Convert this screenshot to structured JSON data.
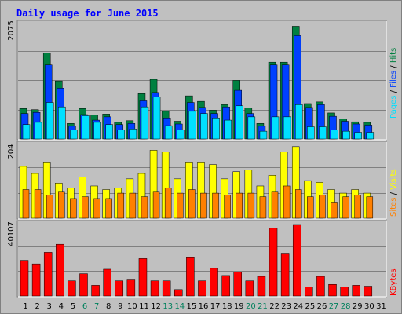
{
  "title": "Daily usage for June 2015",
  "colors": {
    "hits": "#008040",
    "files": "#0040ff",
    "pages": "#00e0ff",
    "visits": "#ffff00",
    "sites": "#ff8000",
    "kbytes": "#ff0000",
    "weekend_label": "#00805c",
    "weekday_label": "#000000"
  },
  "chart_data": [
    {
      "type": "bar",
      "panel": "top",
      "ymax_label": "2075",
      "ylim": [
        0,
        2075
      ],
      "legend": [
        "Pages",
        "Files",
        "Hits"
      ],
      "categories": [
        "1",
        "2",
        "3",
        "4",
        "5",
        "6",
        "7",
        "8",
        "9",
        "10",
        "11",
        "12",
        "13",
        "14",
        "15",
        "16",
        "17",
        "18",
        "19",
        "20",
        "21",
        "22",
        "23",
        "24",
        "25",
        "26",
        "27",
        "28",
        "29",
        "30",
        "31"
      ],
      "series": [
        {
          "name": "Hits",
          "values": [
            550,
            530,
            1560,
            1050,
            280,
            550,
            430,
            450,
            300,
            330,
            820,
            1080,
            500,
            320,
            780,
            680,
            520,
            620,
            1060,
            560,
            280,
            1390,
            1390,
            2040,
            640,
            670,
            470,
            360,
            310,
            300,
            0
          ]
        },
        {
          "name": "Files",
          "values": [
            460,
            480,
            1340,
            920,
            230,
            440,
            340,
            400,
            260,
            280,
            690,
            840,
            380,
            270,
            660,
            570,
            460,
            580,
            880,
            460,
            230,
            1340,
            1340,
            1870,
            570,
            620,
            410,
            320,
            270,
            250,
            0
          ]
        },
        {
          "name": "Pages",
          "values": [
            260,
            300,
            660,
            580,
            160,
            420,
            300,
            260,
            160,
            180,
            580,
            760,
            240,
            160,
            500,
            460,
            380,
            340,
            600,
            400,
            140,
            400,
            400,
            620,
            220,
            220,
            160,
            140,
            120,
            120,
            0
          ]
        }
      ]
    },
    {
      "type": "bar",
      "panel": "middle",
      "ymax_label": "204",
      "ylim": [
        0,
        204
      ],
      "legend": [
        "Sites",
        "Visits"
      ],
      "categories": [
        "1",
        "2",
        "3",
        "4",
        "5",
        "6",
        "7",
        "8",
        "9",
        "10",
        "11",
        "12",
        "13",
        "14",
        "15",
        "16",
        "17",
        "18",
        "19",
        "20",
        "21",
        "22",
        "23",
        "24",
        "25",
        "26",
        "27",
        "28",
        "29",
        "30",
        "31"
      ],
      "series": [
        {
          "name": "Visits",
          "values": [
            145,
            125,
            155,
            98,
            85,
            115,
            90,
            80,
            85,
            110,
            125,
            190,
            185,
            110,
            155,
            155,
            150,
            110,
            130,
            135,
            90,
            120,
            185,
            200,
            105,
            100,
            80,
            70,
            80,
            70,
            0
          ]
        },
        {
          "name": "Sites",
          "values": [
            80,
            80,
            65,
            75,
            55,
            60,
            55,
            55,
            70,
            70,
            60,
            75,
            85,
            70,
            80,
            70,
            70,
            65,
            70,
            70,
            60,
            75,
            90,
            80,
            60,
            65,
            45,
            60,
            65,
            60,
            0
          ]
        }
      ]
    },
    {
      "type": "bar",
      "panel": "bottom",
      "ymax_label": "40107",
      "ylim": [
        0,
        40107
      ],
      "legend": [
        "KBytes"
      ],
      "categories": [
        "1",
        "2",
        "3",
        "4",
        "5",
        "6",
        "7",
        "8",
        "9",
        "10",
        "11",
        "12",
        "13",
        "14",
        "15",
        "16",
        "17",
        "18",
        "19",
        "20",
        "21",
        "22",
        "23",
        "24",
        "25",
        "26",
        "27",
        "28",
        "29",
        "30",
        "31"
      ],
      "series": [
        {
          "name": "KBytes",
          "values": [
            20000,
            18000,
            24500,
            29000,
            8500,
            12500,
            6000,
            15000,
            8500,
            9000,
            21000,
            8500,
            8500,
            3600,
            21500,
            8500,
            15500,
            11500,
            13500,
            8500,
            11000,
            38000,
            24000,
            40107,
            5000,
            11000,
            6500,
            5000,
            6000,
            5500,
            0
          ]
        }
      ]
    }
  ],
  "weekend_days": [
    6,
    7,
    13,
    14,
    20,
    21,
    27,
    28
  ]
}
